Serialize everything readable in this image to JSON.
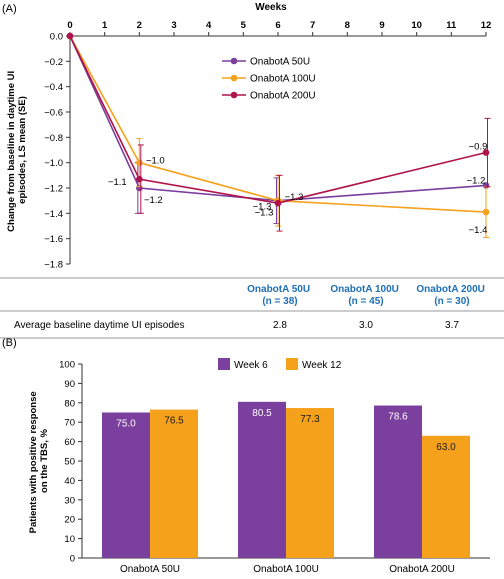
{
  "panel_a_label": "(A)",
  "panel_b_label": "(B)",
  "colors": {
    "purple": "#7b3f9e",
    "orange": "#f5a11c",
    "crimson": "#b0134b",
    "blue_header": "#1f6fb5",
    "axis": "#333333"
  },
  "table": {
    "headers": [
      {
        "line1": "OnabotA 50U",
        "line2": "(n = 38)"
      },
      {
        "line1": "OnabotA 100U",
        "line2": "(n = 45)"
      },
      {
        "line1": "OnabotA 200U",
        "line2": "(n = 30)"
      }
    ],
    "row_label": "Average baseline daytime UI episodes",
    "row_values": [
      "2.8",
      "3.0",
      "3.7"
    ]
  },
  "chart_data": [
    {
      "type": "line",
      "title": "",
      "xlabel": "Weeks",
      "ylabel": "Change from baseline in daytime UI episodes, LS mean (SE)",
      "x_ticks": [
        0,
        1,
        2,
        3,
        4,
        5,
        6,
        7,
        8,
        9,
        10,
        11,
        12
      ],
      "xlim": [
        0,
        12
      ],
      "y_ticks": [
        "0.0",
        "-0.2",
        "-0.4",
        "-0.6",
        "-0.8",
        "-1.0",
        "-1.2",
        "-1.4",
        "-1.6",
        "-1.8"
      ],
      "ylim": [
        -1.8,
        0
      ],
      "x_axis_position": "top",
      "legend_position": "upper-center",
      "series": [
        {
          "name": "OnabotA 50U",
          "color": "#7b3f9e",
          "x": [
            0,
            2,
            6,
            12
          ],
          "y": [
            0.0,
            -1.2,
            -1.3,
            -1.18
          ],
          "err": [
            0,
            0.2,
            0.18,
            0.0
          ],
          "labels": [
            {
              "text": "-1.2",
              "x": 2
            },
            {
              "text": "-1.3",
              "x": 6
            },
            {
              "text": "-1.2",
              "x": 12
            }
          ]
        },
        {
          "name": "OnabotA 100U",
          "color": "#f5a11c",
          "x": [
            0,
            2,
            6,
            12
          ],
          "y": [
            0.0,
            -1.0,
            -1.3,
            -1.39
          ],
          "err": [
            0,
            0.19,
            0.2,
            0.2
          ],
          "labels": [
            {
              "text": "-1.0",
              "x": 2
            },
            {
              "text": "-1.3",
              "x": 6
            },
            {
              "text": "-1.4",
              "x": 12
            }
          ]
        },
        {
          "name": "OnabotA 200U",
          "color": "#b0134b",
          "x": [
            0,
            2,
            6,
            12
          ],
          "y": [
            0.0,
            -1.13,
            -1.32,
            -0.92
          ],
          "err": [
            0,
            0.27,
            0.22,
            0.27
          ],
          "labels": [
            {
              "text": "-1.1",
              "x": 2
            },
            {
              "text": "-1.3",
              "x": 6
            },
            {
              "text": "-0.9",
              "x": 12
            }
          ]
        }
      ]
    },
    {
      "type": "bar",
      "title": "",
      "xlabel": "",
      "ylabel": "Patients with positive response on the TBS, %",
      "categories": [
        "OnabotA 50U",
        "OnabotA 100U",
        "OnabotA 200U"
      ],
      "y_ticks": [
        0,
        10,
        20,
        30,
        40,
        50,
        60,
        70,
        80,
        90,
        100
      ],
      "ylim": [
        0,
        100
      ],
      "legend_position": "top-center",
      "series": [
        {
          "name": "Week 6",
          "color": "#7b3f9e",
          "values": [
            75.0,
            80.5,
            78.6
          ],
          "labels": [
            "75.0",
            "80.5",
            "78.6"
          ]
        },
        {
          "name": "Week 12",
          "color": "#f5a11c",
          "values": [
            76.5,
            77.3,
            63.0
          ],
          "labels": [
            "76.5",
            "77.3",
            "63.0"
          ]
        }
      ]
    }
  ]
}
